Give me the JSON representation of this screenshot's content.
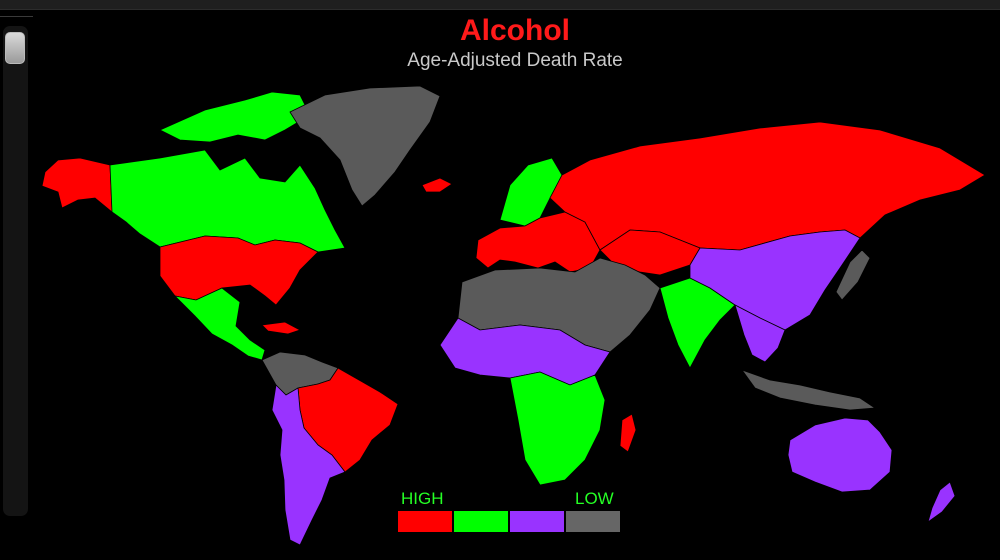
{
  "header": {
    "title": "Alcohol",
    "subtitle": "Age-Adjusted Death Rate"
  },
  "legend": {
    "high_label": "HIGH",
    "low_label": "LOW",
    "scale": [
      {
        "level": "highest",
        "color": "#ff0000"
      },
      {
        "level": "high",
        "color": "#00ff00"
      },
      {
        "level": "low",
        "color": "#9933ff"
      },
      {
        "level": "lowest",
        "color": "#666666"
      }
    ]
  },
  "map": {
    "ocean_color": "#000000",
    "regions": [
      {
        "name": "Alaska",
        "category": "highest"
      },
      {
        "name": "Canada",
        "category": "high"
      },
      {
        "name": "Greenland",
        "category": "lowest"
      },
      {
        "name": "United States",
        "category": "highest"
      },
      {
        "name": "Mexico",
        "category": "high"
      },
      {
        "name": "Northern South America",
        "category": "lowest"
      },
      {
        "name": "Brazil",
        "category": "highest"
      },
      {
        "name": "Southern Cone",
        "category": "low"
      },
      {
        "name": "Iceland",
        "category": "highest"
      },
      {
        "name": "Scandinavia",
        "category": "high"
      },
      {
        "name": "Europe",
        "category": "highest"
      },
      {
        "name": "Russia",
        "category": "highest"
      },
      {
        "name": "Central Asia",
        "category": "highest"
      },
      {
        "name": "North Africa and Middle East",
        "category": "lowest"
      },
      {
        "name": "Sahel Africa",
        "category": "low"
      },
      {
        "name": "Central and Southern Africa",
        "category": "high"
      },
      {
        "name": "India",
        "category": "high"
      },
      {
        "name": "China",
        "category": "low"
      },
      {
        "name": "Japan",
        "category": "lowest"
      },
      {
        "name": "Southeast Asia",
        "category": "low"
      },
      {
        "name": "Indonesia",
        "category": "lowest"
      },
      {
        "name": "Australia",
        "category": "low"
      },
      {
        "name": "New Zealand",
        "category": "low"
      },
      {
        "name": "Madagascar",
        "category": "highest"
      }
    ]
  }
}
